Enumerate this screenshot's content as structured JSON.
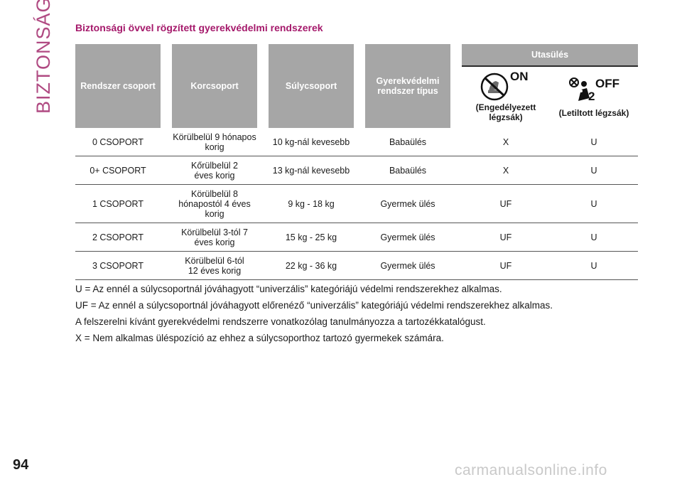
{
  "side_label": "BIZTONSÁG",
  "title": "Biztonsági övvel rögzített gyerekvédelmi rendszerek",
  "table": {
    "headers": {
      "group": "Rendszer csoport",
      "age": "Korcsoport",
      "weight": "Súlycsoport",
      "type": "Gyerekvédelmi rendszer típus",
      "passenger_seat": "Utasülés",
      "airbag_on_caption": "(Engedélyezett légzsák)",
      "airbag_on_text": "ON",
      "airbag_off_caption": "(Letiltott légzsák)",
      "airbag_off_text": "OFF",
      "airbag_off_number": "2"
    },
    "rows": [
      {
        "group": "0 CSOPORT",
        "age": "Körülbelül 9 hónapos korig",
        "weight": "10 kg-nál kevesebb",
        "type": "Babaülés",
        "on": "X",
        "off": "U"
      },
      {
        "group": "0+ CSOPORT",
        "age": "Kőrülbelül 2 éves korig",
        "weight": "13 kg-nál kevesebb",
        "type": "Babaülés",
        "on": "X",
        "off": "U"
      },
      {
        "group": "1 CSOPORT",
        "age": "Körülbelül 8 hónapostól 4 éves korig",
        "weight": "9 kg - 18 kg",
        "type": "Gyermek ülés",
        "on": "UF",
        "off": "U"
      },
      {
        "group": "2 CSOPORT",
        "age": "Körülbelül 3-tól 7 éves korig",
        "weight": "15 kg - 25 kg",
        "type": "Gyermek ülés",
        "on": "UF",
        "off": "U"
      },
      {
        "group": "3 CSOPORT",
        "age": "Körülbelül 6-tól 12 éves korig",
        "weight": "22 kg - 36 kg",
        "type": "Gyermek ülés",
        "on": "UF",
        "off": "U"
      }
    ]
  },
  "notes": [
    "U = Az ennél a súlycsoportnál jóváhagyott “univerzális” kategóriájú védelmi rendszerekhez alkalmas.",
    "UF = Az ennél a súlycsoportnál jóváhagyott előrenéző “univerzális” kategóriájú védelmi rendszerekhez alkalmas.",
    "A felszerelni kívánt gyerekvédelmi rendszerre vonatkozólag tanulmányozza a tartozékkatalógust.",
    "X = Nem alkalmas üléspozíció az ehhez a súlycsoporthoz tartozó gyermekek számára."
  ],
  "page_number": "94",
  "watermark": "carmanualsonline.info",
  "colors": {
    "accent": "#a5196b",
    "header_bg": "#a6a6a6"
  }
}
